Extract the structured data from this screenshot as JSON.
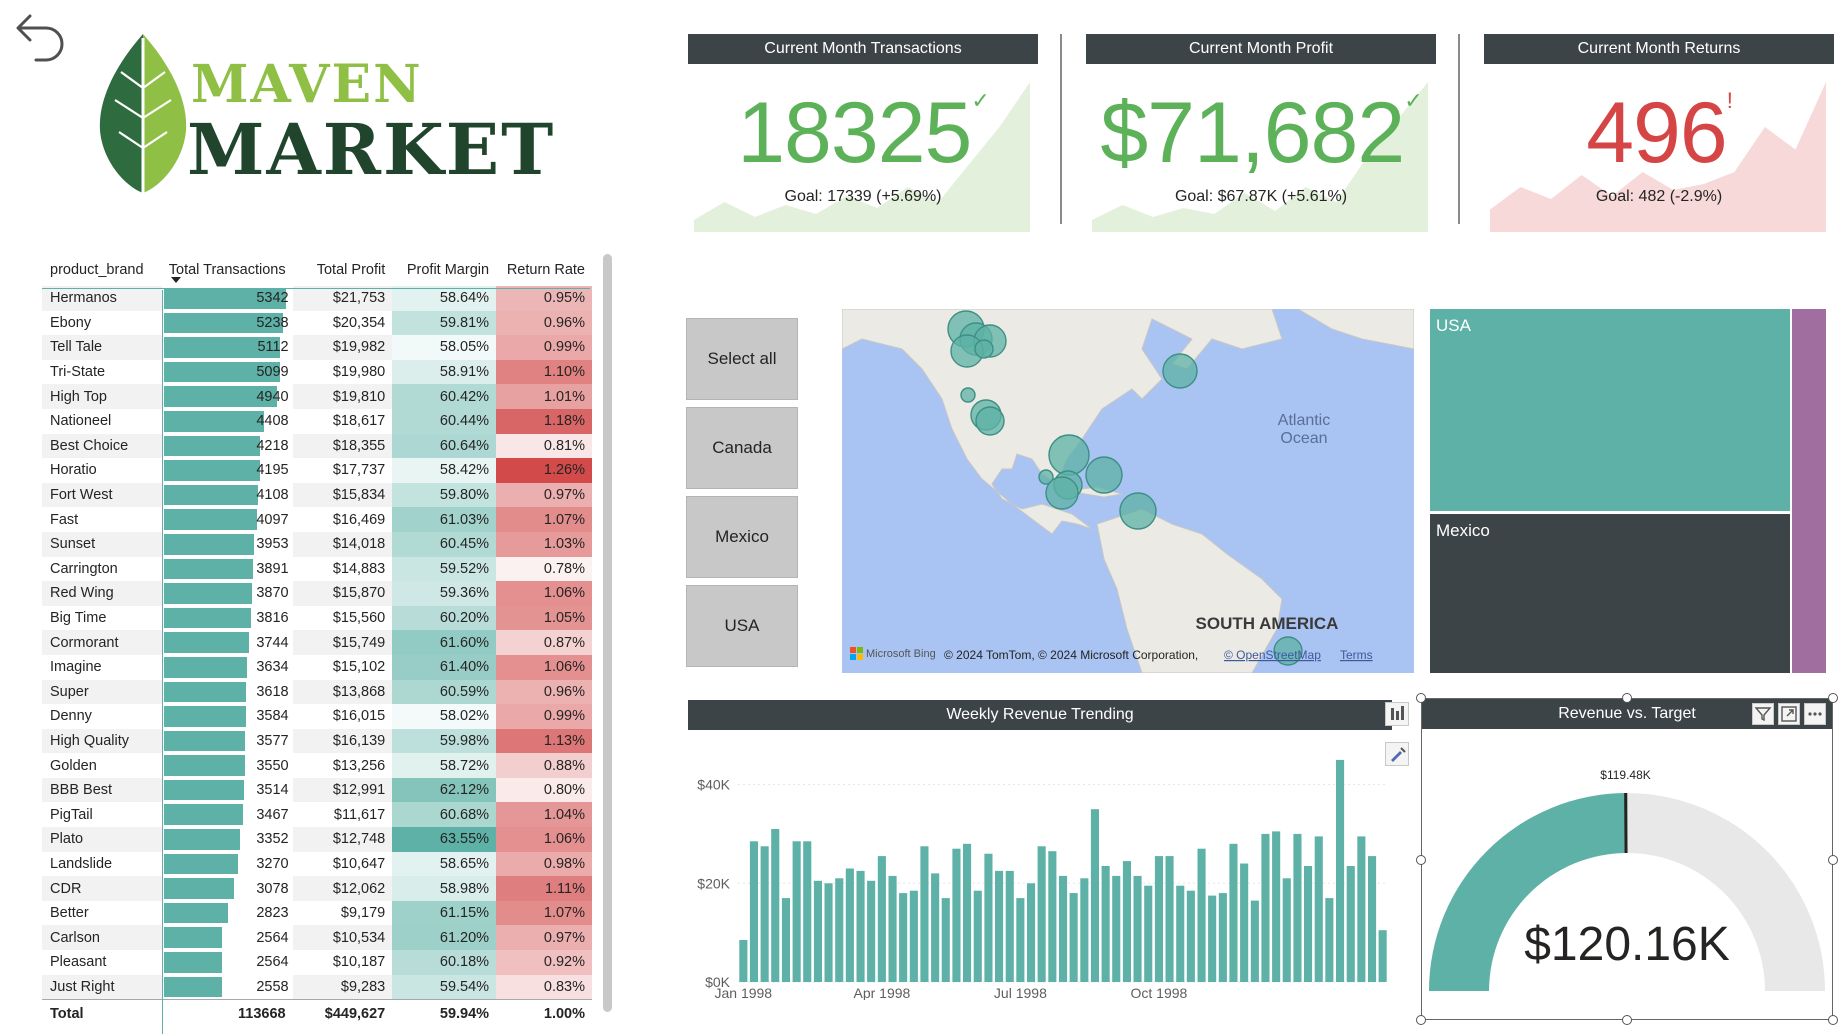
{
  "logo": {
    "line1": "MAVEN",
    "line2": "MARKET"
  },
  "kpis": [
    {
      "title": "Current Month Transactions",
      "value": "18325",
      "indicator": "✓",
      "goal": "Goal: 17339 (+5.69%)",
      "color": "#5db159",
      "fill": "#e2f0dc",
      "spark": [
        0.92,
        0.8,
        0.9,
        0.82,
        0.88,
        0.76,
        0.84,
        0.7,
        0.8,
        0.55,
        0.3,
        0.0
      ]
    },
    {
      "title": "Current Month Profit",
      "value": "$71,682",
      "indicator": "✓",
      "goal": "Goal: $67.87K (+5.61%)",
      "color": "#5db159",
      "fill": "#e2f0dc",
      "spark": [
        0.92,
        0.82,
        0.9,
        0.84,
        0.88,
        0.74,
        0.86,
        0.7,
        0.8,
        0.5,
        0.25,
        0.0
      ]
    },
    {
      "title": "Current Month Returns",
      "value": "496",
      "indicator": "!",
      "goal": "Goal: 482 (-2.9%)",
      "color": "#d64545",
      "fill": "#f7d9d9",
      "spark": [
        0.85,
        0.7,
        0.78,
        0.62,
        0.76,
        0.6,
        0.72,
        0.68,
        0.6,
        0.3,
        0.45,
        0.0
      ]
    }
  ],
  "table": {
    "headers": [
      "product_brand",
      "Total Transactions",
      "Total Profit",
      "Profit Margin",
      "Return Rate"
    ],
    "rows": [
      [
        "Hermanos",
        5342,
        "$21,753",
        "58.64%",
        "0.95%"
      ],
      [
        "Ebony",
        5238,
        "$20,354",
        "59.81%",
        "0.96%"
      ],
      [
        "Tell Tale",
        5112,
        "$19,982",
        "58.05%",
        "0.99%"
      ],
      [
        "Tri-State",
        5099,
        "$19,980",
        "58.91%",
        "1.10%"
      ],
      [
        "High Top",
        4940,
        "$19,810",
        "60.42%",
        "1.01%"
      ],
      [
        "Nationeel",
        4408,
        "$18,617",
        "60.44%",
        "1.18%"
      ],
      [
        "Best Choice",
        4218,
        "$18,355",
        "60.64%",
        "0.81%"
      ],
      [
        "Horatio",
        4195,
        "$17,737",
        "58.42%",
        "1.26%"
      ],
      [
        "Fort West",
        4108,
        "$15,834",
        "59.80%",
        "0.97%"
      ],
      [
        "Fast",
        4097,
        "$16,469",
        "61.03%",
        "1.07%"
      ],
      [
        "Sunset",
        3953,
        "$14,018",
        "60.45%",
        "1.03%"
      ],
      [
        "Carrington",
        3891,
        "$14,883",
        "59.52%",
        "0.78%"
      ],
      [
        "Red Wing",
        3870,
        "$15,870",
        "59.36%",
        "1.06%"
      ],
      [
        "Big Time",
        3816,
        "$15,560",
        "60.20%",
        "1.05%"
      ],
      [
        "Cormorant",
        3744,
        "$15,749",
        "61.60%",
        "0.87%"
      ],
      [
        "Imagine",
        3634,
        "$15,102",
        "61.40%",
        "1.06%"
      ],
      [
        "Super",
        3618,
        "$13,868",
        "60.59%",
        "0.96%"
      ],
      [
        "Denny",
        3584,
        "$16,015",
        "58.02%",
        "0.99%"
      ],
      [
        "High Quality",
        3577,
        "$16,139",
        "59.98%",
        "1.13%"
      ],
      [
        "Golden",
        3550,
        "$13,256",
        "58.72%",
        "0.88%"
      ],
      [
        "BBB Best",
        3514,
        "$12,991",
        "62.12%",
        "0.80%"
      ],
      [
        "PigTail",
        3467,
        "$11,617",
        "60.68%",
        "1.04%"
      ],
      [
        "Plato",
        3352,
        "$12,748",
        "63.55%",
        "1.06%"
      ],
      [
        "Landslide",
        3270,
        "$10,647",
        "58.65%",
        "0.98%"
      ],
      [
        "CDR",
        3078,
        "$12,062",
        "58.98%",
        "1.11%"
      ],
      [
        "Better",
        2823,
        "$9,179",
        "61.15%",
        "1.07%"
      ],
      [
        "Carlson",
        2564,
        "$10,534",
        "61.20%",
        "0.97%"
      ],
      [
        "Pleasant",
        2564,
        "$10,187",
        "60.18%",
        "0.92%"
      ],
      [
        "Just Right",
        2558,
        "$9,283",
        "59.54%",
        "0.83%"
      ]
    ],
    "total": [
      "Total",
      "113668",
      "$449,627",
      "59.94%",
      "1.00%"
    ]
  },
  "slicer": [
    "Select all",
    "Canada",
    "Mexico",
    "USA"
  ],
  "map": {
    "labels": {
      "ocean": "Atlantic Ocean",
      "continent": "SOUTH AMERICA"
    },
    "attribution": "© 2024 TomTom, © 2024 Microsoft Corporation,",
    "osm": "© OpenStreetMap",
    "terms": "Terms",
    "bing": "Microsoft Bing"
  },
  "treemap": [
    {
      "label": "USA",
      "color": "#5db1a6"
    },
    {
      "label": "Mexico",
      "color": "#3d4448"
    },
    {
      "label": "",
      "color": "#a06fa0"
    }
  ],
  "weekly": {
    "title": "Weekly Revenue Trending",
    "y_ticks": [
      "$40K",
      "$20K",
      "$0K"
    ],
    "x_ticks": [
      "Jan 1998",
      "Apr 1998",
      "Jul 1998",
      "Oct 1998"
    ]
  },
  "gauge": {
    "title": "Revenue vs. Target",
    "value_label": "$120.16K",
    "target_label": "$119.48K",
    "value": 120.16,
    "target": 119.48,
    "max": 240
  },
  "chart_data": {
    "type": "bar",
    "title": "Weekly Revenue Trending",
    "xlabel": "",
    "ylabel": "",
    "ylim": [
      0,
      47000
    ],
    "x_tick_labels": [
      "Jan 1998",
      "Apr 1998",
      "Jul 1998",
      "Oct 1998"
    ],
    "values": [
      8500,
      28500,
      27500,
      31000,
      17000,
      28500,
      28500,
      20500,
      20000,
      21000,
      23000,
      22500,
      20500,
      25500,
      21500,
      18000,
      18500,
      27500,
      22000,
      17000,
      27000,
      28000,
      18500,
      26000,
      22500,
      22500,
      17000,
      20000,
      27500,
      26500,
      21500,
      18000,
      21000,
      35000,
      23500,
      21500,
      24500,
      21500,
      19500,
      25500,
      25500,
      19500,
      18500,
      27000,
      17500,
      18000,
      28000,
      24000,
      16500,
      30000,
      30500,
      21000,
      30000,
      23500,
      29500,
      17000,
      45000,
      23500,
      29500,
      25500,
      10500
    ],
    "grid": true
  }
}
